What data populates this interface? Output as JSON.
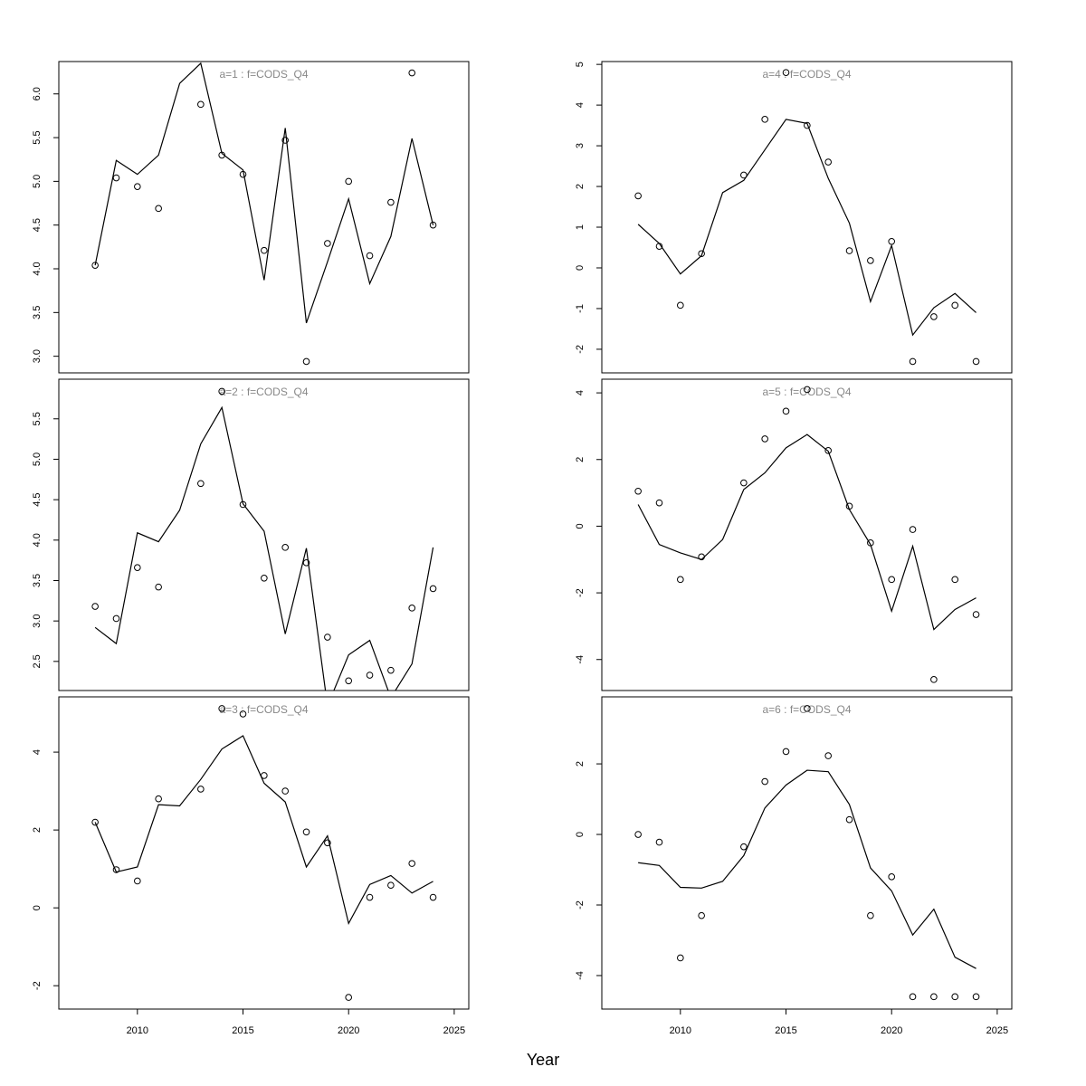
{
  "chart_data": [
    {
      "type": "line",
      "title": "a=1  :  f=CODS_Q4",
      "x": [
        2008,
        2009,
        2010,
        2011,
        2012,
        2013,
        2014,
        2015,
        2016,
        2017,
        2018,
        2019,
        2020,
        2021,
        2022,
        2023,
        2024
      ],
      "series": [
        {
          "style": "line",
          "color": "#000000",
          "values": [
            4.04,
            5.24,
            5.08,
            5.3,
            6.12,
            6.35,
            5.32,
            5.13,
            3.87,
            5.61,
            3.38,
            4.08,
            4.8,
            3.83,
            4.37,
            5.49,
            4.5
          ]
        },
        {
          "style": "points",
          "color": "#000000",
          "values": [
            4.04,
            5.04,
            4.94,
            4.69,
            null,
            5.88,
            5.3,
            5.08,
            4.21,
            5.47,
            2.94,
            4.29,
            5.0,
            4.15,
            4.76,
            6.24,
            4.5
          ]
        }
      ],
      "xlim": [
        2006.28,
        2025.69
      ],
      "ylim": [
        2.81,
        6.37
      ],
      "yticks": [
        {
          "value": 3,
          "label": "3.0"
        },
        3.5,
        {
          "value": 4,
          "label": "4.0"
        },
        4.5,
        {
          "value": 5,
          "label": "5.0"
        },
        5.5,
        {
          "value": 6,
          "label": "6.0"
        }
      ]
    },
    {
      "type": "line",
      "title": "a=2  :  f=CODS_Q4",
      "x": [
        2008,
        2009,
        2010,
        2011,
        2012,
        2013,
        2014,
        2015,
        2016,
        2017,
        2018,
        2019,
        2020,
        2021,
        2022,
        2023,
        2024
      ],
      "series": [
        {
          "style": "line",
          "color": "#000000",
          "values": [
            2.92,
            2.72,
            4.09,
            3.98,
            4.37,
            5.19,
            5.64,
            4.45,
            4.11,
            2.84,
            3.9,
            1.95,
            2.58,
            2.76,
            2.05,
            2.47,
            3.91
          ]
        },
        {
          "style": "points",
          "color": "#000000",
          "values": [
            3.18,
            3.03,
            3.66,
            3.42,
            null,
            4.7,
            5.84,
            4.44,
            3.53,
            3.91,
            3.72,
            2.8,
            2.26,
            2.33,
            2.39,
            3.16,
            3.4
          ]
        }
      ],
      "xlim": [
        2006.28,
        2025.69
      ],
      "ylim": [
        2.14,
        5.99
      ],
      "yticks": [
        2.5,
        {
          "value": 3,
          "label": "3.0"
        },
        3.5,
        {
          "value": 4,
          "label": "4.0"
        },
        4.5,
        {
          "value": 5,
          "label": "5.0"
        },
        5.5
      ]
    },
    {
      "type": "line",
      "title": "a=3  :  f=CODS_Q4",
      "xlabel": "Year",
      "x": [
        2008,
        2009,
        2010,
        2011,
        2012,
        2013,
        2014,
        2015,
        2016,
        2017,
        2018,
        2019,
        2020,
        2021,
        2022,
        2023,
        2024
      ],
      "series": [
        {
          "style": "line",
          "color": "#000000",
          "values": [
            2.2,
            0.92,
            1.05,
            2.65,
            2.62,
            3.3,
            4.08,
            4.42,
            3.2,
            2.72,
            1.05,
            1.85,
            -0.4,
            0.6,
            0.83,
            0.38,
            0.68
          ]
        },
        {
          "style": "points",
          "color": "#000000",
          "values": [
            2.2,
            0.98,
            0.69,
            2.8,
            null,
            3.05,
            5.12,
            4.98,
            3.4,
            3.0,
            1.95,
            1.67,
            -2.3,
            0.27,
            0.58,
            1.14,
            0.27
          ]
        }
      ],
      "xlim": [
        2006.28,
        2025.69
      ],
      "ylim": [
        -2.6,
        5.42
      ],
      "xticks": [
        2010,
        2015,
        2020,
        2025
      ],
      "yticks": [
        -2,
        0,
        2,
        4
      ]
    },
    {
      "type": "line",
      "title": "a=4  :  f=CODS_Q4",
      "x": [
        2008,
        2009,
        2010,
        2011,
        2012,
        2013,
        2014,
        2015,
        2016,
        2017,
        2018,
        2019,
        2020,
        2021,
        2022,
        2023,
        2024
      ],
      "series": [
        {
          "style": "line",
          "color": "#000000",
          "values": [
            1.07,
            0.6,
            -0.15,
            0.3,
            1.85,
            2.15,
            2.9,
            3.65,
            3.55,
            2.2,
            1.1,
            -0.83,
            0.55,
            -1.65,
            -0.98,
            -0.63,
            -1.1
          ]
        },
        {
          "style": "points",
          "color": "#000000",
          "values": [
            1.77,
            0.53,
            -0.92,
            0.35,
            null,
            2.28,
            3.65,
            4.8,
            3.5,
            2.6,
            0.42,
            0.18,
            0.65,
            -2.3,
            -1.2,
            -0.92,
            -2.3
          ]
        }
      ],
      "xlim": [
        2006.28,
        2025.69
      ],
      "ylim": [
        -2.58,
        5.07
      ],
      "yticks": [
        -2,
        -1,
        0,
        1,
        2,
        3,
        4,
        5
      ]
    },
    {
      "type": "line",
      "title": "a=5  :  f=CODS_Q4",
      "x": [
        2008,
        2009,
        2010,
        2011,
        2012,
        2013,
        2014,
        2015,
        2016,
        2017,
        2018,
        2019,
        2020,
        2021,
        2022,
        2023,
        2024
      ],
      "series": [
        {
          "style": "line",
          "color": "#000000",
          "values": [
            0.65,
            -0.55,
            -0.8,
            -1.0,
            -0.4,
            1.1,
            1.6,
            2.35,
            2.75,
            2.25,
            0.5,
            -0.55,
            -2.55,
            -0.6,
            -3.1,
            -2.5,
            -2.15
          ]
        },
        {
          "style": "points",
          "color": "#000000",
          "values": [
            1.05,
            0.7,
            -1.6,
            -0.92,
            null,
            1.3,
            2.62,
            3.45,
            4.1,
            2.27,
            0.6,
            -0.5,
            -1.6,
            -0.1,
            -4.6,
            -1.6,
            -2.65
          ]
        }
      ],
      "xlim": [
        2006.28,
        2025.69
      ],
      "ylim": [
        -4.93,
        4.41
      ],
      "yticks": [
        -4,
        -2,
        0,
        2,
        4
      ]
    },
    {
      "type": "line",
      "title": "a=6  :  f=CODS_Q4",
      "x": [
        2008,
        2009,
        2010,
        2011,
        2012,
        2013,
        2014,
        2015,
        2016,
        2017,
        2018,
        2019,
        2020,
        2021,
        2022,
        2023,
        2024
      ],
      "series": [
        {
          "style": "line",
          "color": "#000000",
          "values": [
            -0.8,
            -0.88,
            -1.5,
            -1.52,
            -1.33,
            -0.6,
            0.75,
            1.4,
            1.82,
            1.78,
            0.85,
            -0.95,
            -1.6,
            -2.85,
            -2.12,
            -3.48,
            -3.8
          ]
        },
        {
          "style": "points",
          "color": "#000000",
          "values": [
            0.0,
            -0.22,
            -3.5,
            -2.3,
            null,
            -0.35,
            1.5,
            2.35,
            3.57,
            2.23,
            0.42,
            -2.3,
            -1.2,
            -4.6,
            -4.6,
            -4.6,
            -4.6
          ]
        }
      ],
      "xlim": [
        2006.28,
        2025.69
      ],
      "ylim": [
        -4.95,
        3.9
      ],
      "xticks": [
        2010,
        2015,
        2020,
        2025
      ],
      "yticks": [
        -4,
        -2,
        0,
        2
      ]
    }
  ]
}
